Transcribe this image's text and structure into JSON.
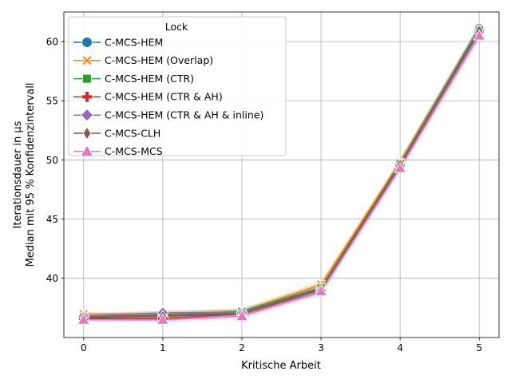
{
  "chart_data": {
    "type": "line",
    "title": "",
    "xlabel": "Kritische Arbeit",
    "ylabel_line1": "Iterationsdauer in µs",
    "ylabel_line2": "Median mit 95 % Konfidenzintervall",
    "x": [
      0,
      1,
      2,
      3,
      4,
      5
    ],
    "x_ticks": [
      "0",
      "1",
      "2",
      "3",
      "4",
      "5"
    ],
    "y_ticks": [
      "40",
      "45",
      "50",
      "55",
      "60"
    ],
    "y_tick_values": [
      40,
      45,
      50,
      55,
      60
    ],
    "xlim": [
      -0.25,
      5.25
    ],
    "ylim": [
      35.0,
      62.5
    ],
    "grid": true,
    "legend_title": "Lock",
    "legend_position": "top-left",
    "series": [
      {
        "name": "C-MCS-HEM",
        "marker": "circle",
        "color": "#1f77b4",
        "values": [
          36.7,
          36.8,
          37.1,
          39.1,
          49.7,
          61.1
        ]
      },
      {
        "name": "C-MCS-HEM (Overlap)",
        "marker": "x-filled",
        "color": "#ff7f0e",
        "values": [
          37.0,
          37.0,
          37.2,
          39.5,
          49.8,
          61.0
        ]
      },
      {
        "name": "C-MCS-HEM (CTR)",
        "marker": "square",
        "color": "#2ca02c",
        "values": [
          36.8,
          36.9,
          37.2,
          39.2,
          49.7,
          61.0
        ]
      },
      {
        "name": "C-MCS-HEM (CTR & AH)",
        "marker": "plus-filled",
        "color": "#d62728",
        "values": [
          36.6,
          36.6,
          37.0,
          39.0,
          49.6,
          60.9
        ]
      },
      {
        "name": "C-MCS-HEM (CTR & AH & inline)",
        "marker": "diamond",
        "color": "#9467bd",
        "values": [
          36.8,
          37.1,
          37.1,
          39.0,
          49.5,
          60.8
        ]
      },
      {
        "name": "C-MCS-CLH",
        "marker": "thin-diamond",
        "color": "#8c564b",
        "values": [
          36.7,
          36.8,
          37.0,
          39.1,
          49.6,
          60.9
        ]
      },
      {
        "name": "C-MCS-MCS",
        "marker": "triangle",
        "color": "#e377c2",
        "values": [
          36.5,
          36.5,
          36.8,
          38.9,
          49.3,
          60.5
        ]
      }
    ]
  }
}
